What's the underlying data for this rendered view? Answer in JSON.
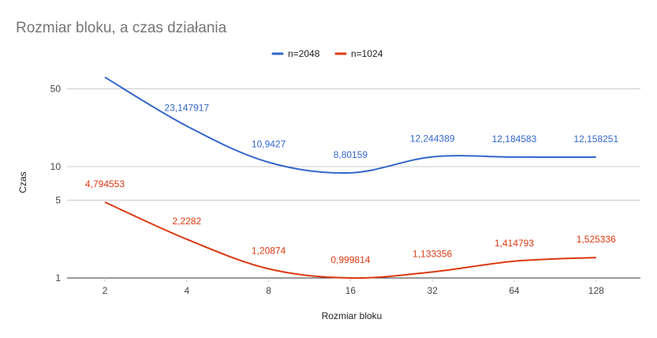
{
  "chart_data": {
    "type": "line",
    "title": "Rozmiar bloku, a czas działania",
    "xlabel": "Rozmiar bloku",
    "ylabel": "Czas",
    "y_scale": "log",
    "categories": [
      "2",
      "4",
      "8",
      "16",
      "32",
      "64",
      "128"
    ],
    "y_ticks": [
      1,
      5,
      10,
      50
    ],
    "y_tick_labels": [
      "1",
      "5",
      "10",
      "50"
    ],
    "legend_position": "top",
    "grid": true,
    "series": [
      {
        "name": "n=2048",
        "color": "#3366cc",
        "values": [
          63.5,
          23.147917,
          10.9427,
          8.80159,
          12.244389,
          12.184583,
          12.158251
        ],
        "labels": [
          "",
          "23,147917",
          "10,9427",
          "8,80159",
          "12,244389",
          "12,184583",
          "12,158251"
        ]
      },
      {
        "name": "n=1024",
        "color": "#dc3912",
        "values": [
          4.794553,
          2.2282,
          1.20874,
          0.999814,
          1.133356,
          1.414793,
          1.525336
        ],
        "labels": [
          "4,794553",
          "2,2282",
          "1,20874",
          "0,999814",
          "1,133356",
          "1,414793",
          "1,525336"
        ]
      }
    ]
  }
}
